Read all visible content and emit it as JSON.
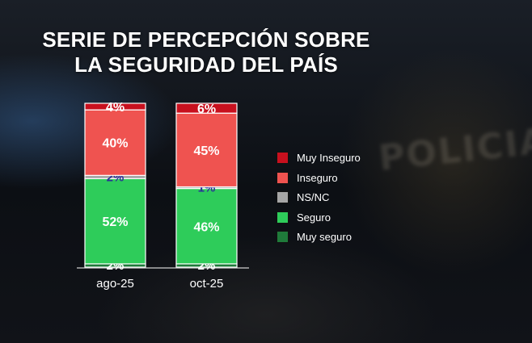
{
  "title_lines": [
    "SERIE DE PERCEPCIÓN SOBRE",
    "LA SEGURIDAD DEL PAÍS"
  ],
  "watermark_text": "POLICIA",
  "chart_data": {
    "type": "bar",
    "stacked": true,
    "title": "SERIE DE PERCEPCIÓN SOBRE LA SEGURIDAD DEL PAÍS",
    "categories": [
      "ago-25",
      "oct-25"
    ],
    "series": [
      {
        "name": "Muy seguro",
        "values": [
          2,
          2
        ],
        "labels": [
          "2%",
          "2%"
        ],
        "color": "#1f7a3a"
      },
      {
        "name": "Seguro",
        "values": [
          52,
          46
        ],
        "labels": [
          "52%",
          "46%"
        ],
        "color": "#2ecc5a"
      },
      {
        "name": "NS/NC",
        "values": [
          2,
          1
        ],
        "labels": [
          "2%",
          "1%"
        ],
        "color": "#a6a6a6"
      },
      {
        "name": "Inseguro",
        "values": [
          40,
          45
        ],
        "labels": [
          "40%",
          "45%"
        ],
        "color": "#ef5350"
      },
      {
        "name": "Muy Inseguro",
        "values": [
          4,
          6
        ],
        "labels": [
          "4%",
          "6%"
        ],
        "color": "#c8101e"
      }
    ],
    "legend_order": [
      "Muy Inseguro",
      "Inseguro",
      "NS/NC",
      "Seguro",
      "Muy seguro"
    ],
    "ylim": [
      0,
      100
    ],
    "legend_position": "right",
    "grid": false
  }
}
